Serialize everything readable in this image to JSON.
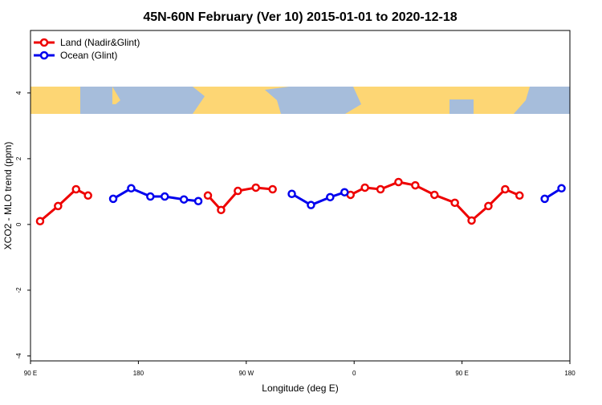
{
  "chart_data": {
    "type": "line",
    "title": "45N-60N February (Ver 10)   2015-01-01 to 2020-12-18",
    "x_label": "Longitude (deg E)",
    "y_label": "XCO2 - MLO trend (ppm)",
    "x": [
      98,
      113,
      128,
      138,
      159,
      174,
      190,
      202,
      218,
      230,
      238,
      249,
      263,
      278,
      292,
      308,
      324,
      340,
      352,
      357,
      369,
      382,
      397,
      411,
      427,
      444,
      458,
      472,
      486,
      498,
      519,
      533
    ],
    "series": [
      {
        "name": "Land (Nadir&Glint)",
        "color": "#ee0000",
        "values": [
          0.1,
          0.56,
          1.07,
          0.88,
          null,
          null,
          null,
          null,
          null,
          null,
          0.88,
          0.44,
          1.02,
          1.12,
          1.07,
          null,
          null,
          null,
          null,
          0.9,
          1.12,
          1.07,
          1.29,
          1.19,
          0.9,
          0.66,
          0.12,
          0.56,
          1.07,
          0.88,
          null,
          null
        ]
      },
      {
        "name": "Ocean (Glint)",
        "color": "#0000ee",
        "values": [
          null,
          null,
          null,
          null,
          0.78,
          1.1,
          0.85,
          0.85,
          0.76,
          0.71,
          null,
          null,
          null,
          null,
          null,
          0.93,
          0.59,
          0.83,
          0.98,
          null,
          null,
          null,
          null,
          null,
          null,
          null,
          null,
          null,
          null,
          null,
          0.78,
          1.1
        ]
      }
    ],
    "xlim": [
      90,
      540
    ],
    "xticks": [
      {
        "value": 90,
        "label": "90 E"
      },
      {
        "value": 180,
        "label": "180"
      },
      {
        "value": 270,
        "label": "90 W"
      },
      {
        "value": 360,
        "label": "0"
      },
      {
        "value": 450,
        "label": "90 E"
      },
      {
        "value": 540,
        "label": "180"
      }
    ],
    "ylim": [
      -4.15,
      5.9
    ],
    "yticks": [
      -4,
      -2,
      0,
      2,
      4
    ],
    "legend": "top-left"
  }
}
